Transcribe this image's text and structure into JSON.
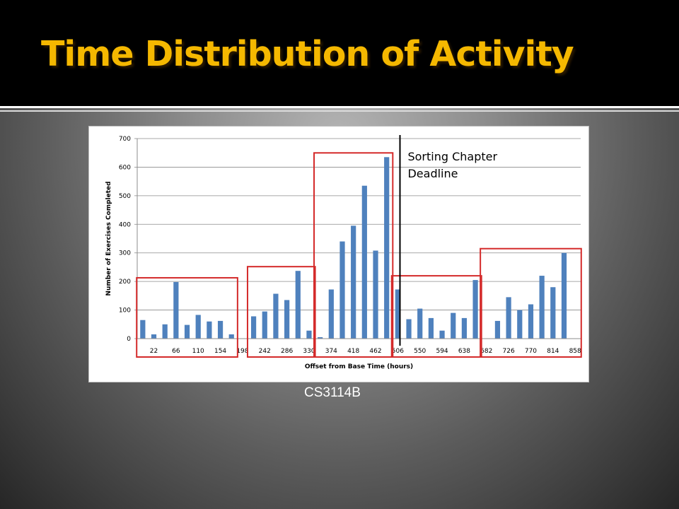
{
  "slide": {
    "title": "Time Distribution of Activity",
    "caption": "CS3114B"
  },
  "colors": {
    "title": "#f5b800",
    "bar": "#4f81bd",
    "highlight_box": "#d42a2a",
    "deadline_line": "#000000"
  },
  "chart_data": {
    "type": "bar",
    "xlabel": "Offset from Base Time (hours)",
    "ylabel": "Number of Exercises Completed",
    "ylim": [
      0,
      700
    ],
    "yticks": [
      0,
      100,
      200,
      300,
      400,
      500,
      600,
      700
    ],
    "x_tick_labels": [
      "22",
      "66",
      "110",
      "154",
      "198",
      "242",
      "286",
      "330",
      "374",
      "418",
      "462",
      "506",
      "550",
      "594",
      "638",
      "682",
      "726",
      "770",
      "814",
      "858"
    ],
    "x": [
      0,
      22,
      44,
      66,
      88,
      110,
      132,
      154,
      176,
      198,
      220,
      242,
      264,
      286,
      308,
      330,
      352,
      374,
      396,
      418,
      440,
      462,
      484,
      506,
      528,
      550,
      572,
      594,
      616,
      638,
      660,
      682,
      704,
      726,
      748,
      770,
      792,
      814,
      836,
      858
    ],
    "values": [
      65,
      15,
      50,
      198,
      48,
      83,
      60,
      62,
      15,
      0,
      78,
      95,
      157,
      135,
      237,
      28,
      5,
      172,
      340,
      395,
      535,
      308,
      635,
      172,
      68,
      105,
      72,
      28,
      90,
      72,
      205,
      0,
      62,
      145,
      100,
      120,
      220,
      180,
      300,
      0
    ],
    "grid": "horizontal",
    "legend": "none",
    "annotations": [
      {
        "text": [
          "Sorting Chapter",
          "Deadline"
        ],
        "type": "vertical-line",
        "at_x": 506
      }
    ],
    "highlight_groups": [
      {
        "x_range": [
          0,
          176
        ]
      },
      {
        "x_range": [
          220,
          330
        ]
      },
      {
        "x_range": [
          352,
          484
        ]
      },
      {
        "x_range": [
          506,
          660
        ]
      },
      {
        "x_range": [
          682,
          858
        ]
      }
    ]
  }
}
